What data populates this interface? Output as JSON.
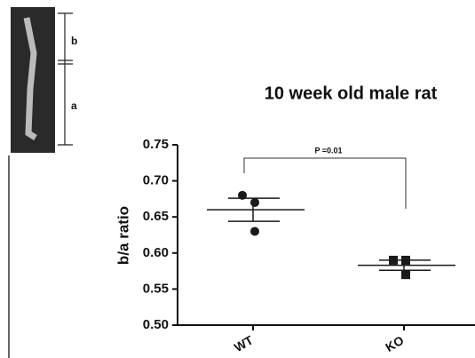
{
  "inset": {
    "labels": [
      "b",
      "a"
    ]
  },
  "chart_data": {
    "type": "dot",
    "title": "10 week old male rat",
    "y_label": "b/a ratio",
    "categories": [
      "WT",
      "KO"
    ],
    "points": [
      [
        0.68,
        0.67,
        0.63
      ],
      [
        0.59,
        0.59,
        0.57
      ]
    ],
    "means": [
      0.66,
      0.583
    ],
    "errors": [
      0.016,
      0.007
    ],
    "markers": [
      "circle",
      "square"
    ],
    "color": "#1a1a1a",
    "annotation": "P =0.01",
    "ylim": [
      0.5,
      0.75
    ],
    "yticks": [
      {
        "value": 0.5,
        "label": "0.50"
      },
      {
        "value": 0.55,
        "label": "0.55"
      },
      {
        "value": 0.6,
        "label": "0.60"
      },
      {
        "value": 0.65,
        "label": "0.65"
      },
      {
        "value": 0.7,
        "label": "0.70"
      },
      {
        "value": 0.75,
        "label": "0.75"
      }
    ]
  }
}
